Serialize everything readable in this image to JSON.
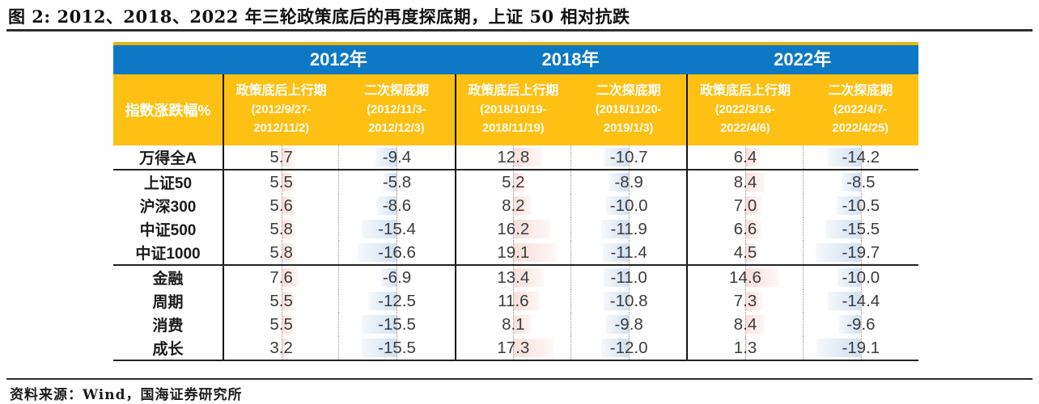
{
  "title": "图 2: 2012、2018、2022 年三轮政策底后的再度探底期，上证 50 相对抗跌",
  "source": "资料来源：Wind，国海证券研究所",
  "colors": {
    "header_blue": "#0d78c4",
    "header_yellow": "#fdc013",
    "bar_positive_tint": "#f6e2dd",
    "bar_negative_tint": "#dbe7f3"
  },
  "table": {
    "corner_label": "指数涨跌幅%",
    "years": [
      "2012年",
      "2018年",
      "2022年"
    ],
    "subcols": [
      {
        "name": "政策底后上行期",
        "period1": "(2012/9/27-",
        "period2": "2012/11/2)"
      },
      {
        "name": "二次探底期",
        "period1": "(2012/11/3-",
        "period2": "2012/12/3)"
      },
      {
        "name": "政策底后上行期",
        "period1": "(2018/10/19-",
        "period2": "2018/11/19)"
      },
      {
        "name": "二次探底期",
        "period1": "(2018/11/20-",
        "period2": "2019/1/3)"
      },
      {
        "name": "政策底后上行期",
        "period1": "(2022/3/16-",
        "period2": "2022/4/6)"
      },
      {
        "name": "二次探底期",
        "period1": "(2022/4/7-",
        "period2": "2022/4/25)"
      }
    ],
    "rows": [
      {
        "label": "万得全A",
        "values": [
          5.7,
          -9.4,
          12.8,
          -10.7,
          6.4,
          -14.2
        ],
        "section_break_after": true
      },
      {
        "label": "上证50",
        "values": [
          5.5,
          -5.8,
          5.2,
          -8.9,
          8.4,
          -8.5
        ],
        "section_break_after": false
      },
      {
        "label": "沪深300",
        "values": [
          5.6,
          -8.6,
          8.2,
          -10.0,
          7.0,
          -10.5
        ],
        "section_break_after": false
      },
      {
        "label": "中证500",
        "values": [
          5.8,
          -15.4,
          16.2,
          -11.9,
          6.6,
          -15.5
        ],
        "section_break_after": false
      },
      {
        "label": "中证1000",
        "values": [
          5.8,
          -16.6,
          19.1,
          -11.4,
          4.5,
          -19.7
        ],
        "section_break_after": true
      },
      {
        "label": "金融",
        "values": [
          7.6,
          -6.9,
          13.4,
          -11.0,
          14.6,
          -10.0
        ],
        "section_break_after": false
      },
      {
        "label": "周期",
        "values": [
          5.5,
          -12.5,
          11.6,
          -10.8,
          7.3,
          -14.4
        ],
        "section_break_after": false
      },
      {
        "label": "消费",
        "values": [
          5.5,
          -15.5,
          8.1,
          -9.8,
          8.4,
          -9.6
        ],
        "section_break_after": false
      },
      {
        "label": "成长",
        "values": [
          3.2,
          -15.5,
          17.3,
          -12.0,
          1.3,
          -19.1
        ],
        "section_break_after": false
      }
    ]
  },
  "chart_data": {
    "type": "table",
    "title": "图 2: 2012、2018、2022 年三轮政策底后的再度探底期，上证 50 相对抗跌",
    "row_header": "指数涨跌幅%",
    "columns": [
      "2012年 政策底后上行期 (2012/9/27-2012/11/2)",
      "2012年 二次探底期 (2012/11/3-2012/12/3)",
      "2018年 政策底后上行期 (2018/10/19-2018/11/19)",
      "2018年 二次探底期 (2018/11/20-2019/1/3)",
      "2022年 政策底后上行期 (2022/3/16-2022/4/6)",
      "2022年 二次探底期 (2022/4/7-2022/4/25)"
    ],
    "rows": [
      "万得全A",
      "上证50",
      "沪深300",
      "中证500",
      "中证1000",
      "金融",
      "周期",
      "消费",
      "成长"
    ],
    "values": [
      [
        5.7,
        -9.4,
        12.8,
        -10.7,
        6.4,
        -14.2
      ],
      [
        5.5,
        -5.8,
        5.2,
        -8.9,
        8.4,
        -8.5
      ],
      [
        5.6,
        -8.6,
        8.2,
        -10.0,
        7.0,
        -10.5
      ],
      [
        5.8,
        -15.4,
        16.2,
        -11.9,
        6.6,
        -15.5
      ],
      [
        5.8,
        -16.6,
        19.1,
        -11.4,
        4.5,
        -19.7
      ],
      [
        7.6,
        -6.9,
        13.4,
        -11.0,
        14.6,
        -10.0
      ],
      [
        5.5,
        -12.5,
        11.6,
        -10.8,
        7.3,
        -14.4
      ],
      [
        5.5,
        -15.5,
        8.1,
        -9.8,
        8.4,
        -9.6
      ],
      [
        3.2,
        -15.5,
        17.3,
        -12.0,
        1.3,
        -19.1
      ]
    ]
  }
}
